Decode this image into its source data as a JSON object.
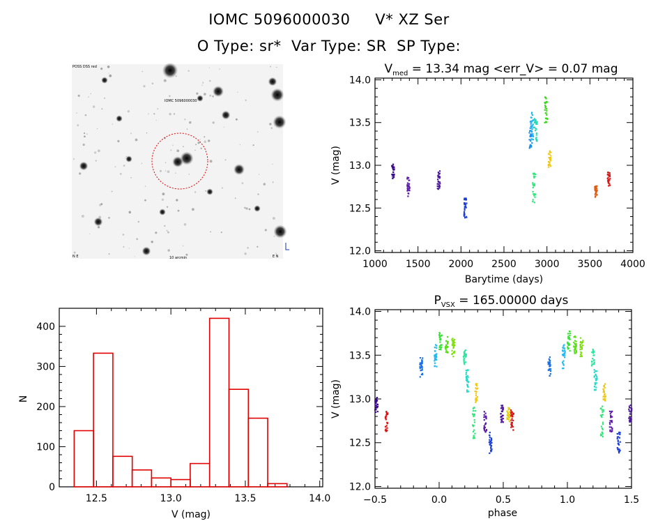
{
  "header": {
    "object_name": "IOMC 5096000030",
    "var_name": "V* XZ Ser",
    "type_line": "O Type: sr*  Var Type: SR  SP Type:"
  },
  "image_panel": {
    "label_tl": "POSS DSS red",
    "label_center": "IOMC 5096000030",
    "label_bl": "N E",
    "label_bottom": "10 arcmin",
    "label_br": "E N"
  },
  "colors": {
    "frame": "#000000",
    "histogram": "#e00000",
    "circle": "#e00000",
    "labels": "#1030b0"
  },
  "chart_data": [
    {
      "id": "lightcurve",
      "type": "scatter",
      "title_main": "V",
      "title_sub": "med",
      "title_rest": " = 13.34 mag <err_V> = 0.07 mag",
      "xlabel": "Barytime (days)",
      "ylabel": "V (mag)",
      "xlim": [
        1000,
        4000
      ],
      "ylim": [
        14.02,
        11.98
      ],
      "xticks": [
        1000,
        1500,
        2000,
        2500,
        3000,
        3500,
        4000
      ],
      "yticks": [
        12.0,
        12.5,
        13.0,
        13.5,
        14.0
      ],
      "ytick_labels": [
        "12.0",
        "12.5",
        "13.0",
        "13.5",
        "14.0"
      ],
      "clusters": [
        {
          "x": 1210,
          "y0": 12.84,
          "y1": 13.02,
          "color": "#3c0a8c"
        },
        {
          "x": 1390,
          "y0": 12.62,
          "y1": 12.86,
          "color": "#5a1aa8"
        },
        {
          "x": 1740,
          "y0": 12.72,
          "y1": 12.94,
          "color": "#4a16a0"
        },
        {
          "x": 2050,
          "y0": 12.38,
          "y1": 12.62,
          "color": "#1a3cd8"
        },
        {
          "x": 2810,
          "y0": 13.2,
          "y1": 13.52,
          "color": "#1890e8"
        },
        {
          "x": 2830,
          "y0": 13.3,
          "y1": 13.64,
          "color": "#20b8f0"
        },
        {
          "x": 2850,
          "y0": 12.55,
          "y1": 12.92,
          "color": "#2ee87a"
        },
        {
          "x": 2870,
          "y0": 13.28,
          "y1": 13.55,
          "color": "#28d8b8"
        },
        {
          "x": 2990,
          "y0": 13.48,
          "y1": 13.8,
          "color": "#38d818"
        },
        {
          "x": 3030,
          "y0": 12.96,
          "y1": 13.18,
          "color": "#f0c818"
        },
        {
          "x": 3570,
          "y0": 12.62,
          "y1": 12.76,
          "color": "#e05a10"
        },
        {
          "x": 3720,
          "y0": 12.76,
          "y1": 12.92,
          "color": "#d81818"
        }
      ]
    },
    {
      "id": "histogram",
      "type": "bar",
      "xlabel": "V (mag)",
      "ylabel": "N",
      "xlim": [
        12.25,
        14.02
      ],
      "ylim": [
        0,
        445
      ],
      "xticks": [
        12.5,
        13.0,
        13.5,
        14.0
      ],
      "xtick_labels": [
        "12.5",
        "13.0",
        "13.5",
        "14.0"
      ],
      "yticks": [
        0,
        100,
        200,
        300,
        400
      ],
      "ytick_labels": [
        "0",
        "100",
        "200",
        "300",
        "400"
      ],
      "bin_edges": [
        12.35,
        12.48,
        12.61,
        12.74,
        12.87,
        13.0,
        13.13,
        13.26,
        13.39,
        13.52,
        13.65,
        13.78,
        13.91
      ],
      "values": [
        140,
        333,
        76,
        42,
        22,
        18,
        58,
        420,
        243,
        171,
        8,
        0
      ]
    },
    {
      "id": "phaseplot",
      "type": "scatter",
      "title_main": "P",
      "title_sub": "VSX",
      "title_rest": " = 165.00000 days",
      "xlabel": "phase",
      "ylabel": "V (mag)",
      "xlim": [
        -0.5,
        1.5
      ],
      "ylim": [
        14.02,
        11.98
      ],
      "xticks": [
        -0.5,
        0.0,
        0.5,
        1.0,
        1.5
      ],
      "xtick_labels": [
        "−0.5",
        "0.0",
        "0.5",
        "1.0",
        "1.5"
      ],
      "yticks": [
        12.0,
        12.5,
        13.0,
        13.5,
        14.0
      ],
      "ytick_labels": [
        "12.0",
        "12.5",
        "13.0",
        "13.5",
        "14.0"
      ],
      "clusters": [
        {
          "x": -0.14,
          "y0": 13.25,
          "y1": 13.48,
          "color": "#1a70e0"
        },
        {
          "x": -0.03,
          "y0": 13.35,
          "y1": 13.62,
          "color": "#20b8f0"
        },
        {
          "x": 0.01,
          "y0": 13.55,
          "y1": 13.78,
          "color": "#38e038"
        },
        {
          "x": 0.06,
          "y0": 13.52,
          "y1": 13.72,
          "color": "#58e018"
        },
        {
          "x": 0.11,
          "y0": 13.48,
          "y1": 13.7,
          "color": "#80e010"
        },
        {
          "x": 0.2,
          "y0": 13.38,
          "y1": 13.58,
          "color": "#2ee8a0"
        },
        {
          "x": 0.22,
          "y0": 13.08,
          "y1": 13.34,
          "color": "#28d8c8"
        },
        {
          "x": 0.27,
          "y0": 12.55,
          "y1": 12.92,
          "color": "#2ee87a"
        },
        {
          "x": 0.29,
          "y0": 12.96,
          "y1": 13.18,
          "color": "#f0c818"
        },
        {
          "x": 0.36,
          "y0": 12.62,
          "y1": 12.86,
          "color": "#5a1aa8"
        },
        {
          "x": 0.4,
          "y0": 12.38,
          "y1": 12.62,
          "color": "#1a3cd8"
        },
        {
          "x": 0.49,
          "y0": 12.72,
          "y1": 12.94,
          "color": "#4a16a0"
        },
        {
          "x": 0.54,
          "y0": 12.74,
          "y1": 12.9,
          "color": "#e0d010"
        },
        {
          "x": 0.57,
          "y0": 12.62,
          "y1": 12.88,
          "color": "#d81818"
        },
        {
          "x": -0.49,
          "y0": 12.84,
          "y1": 13.02,
          "color": "#3c0a8c"
        },
        {
          "x": -0.41,
          "y0": 12.62,
          "y1": 12.86,
          "color": "#d81818"
        },
        {
          "x": 0.86,
          "y0": 13.25,
          "y1": 13.48,
          "color": "#1a70e0"
        },
        {
          "x": 0.97,
          "y0": 13.35,
          "y1": 13.62,
          "color": "#20b8f0"
        },
        {
          "x": 1.01,
          "y0": 13.55,
          "y1": 13.78,
          "color": "#38e038"
        },
        {
          "x": 1.06,
          "y0": 13.52,
          "y1": 13.72,
          "color": "#58e018"
        },
        {
          "x": 1.11,
          "y0": 13.48,
          "y1": 13.7,
          "color": "#80e010"
        },
        {
          "x": 1.2,
          "y0": 13.38,
          "y1": 13.58,
          "color": "#2ee8a0"
        },
        {
          "x": 1.22,
          "y0": 13.08,
          "y1": 13.34,
          "color": "#28d8c8"
        },
        {
          "x": 1.27,
          "y0": 12.55,
          "y1": 12.92,
          "color": "#2ee87a"
        },
        {
          "x": 1.29,
          "y0": 12.96,
          "y1": 13.18,
          "color": "#f0c818"
        },
        {
          "x": 1.34,
          "y0": 12.62,
          "y1": 12.86,
          "color": "#5a1aa8"
        },
        {
          "x": 1.4,
          "y0": 12.38,
          "y1": 12.62,
          "color": "#1a3cd8"
        },
        {
          "x": 1.49,
          "y0": 12.72,
          "y1": 12.94,
          "color": "#4a16a0"
        }
      ]
    }
  ]
}
